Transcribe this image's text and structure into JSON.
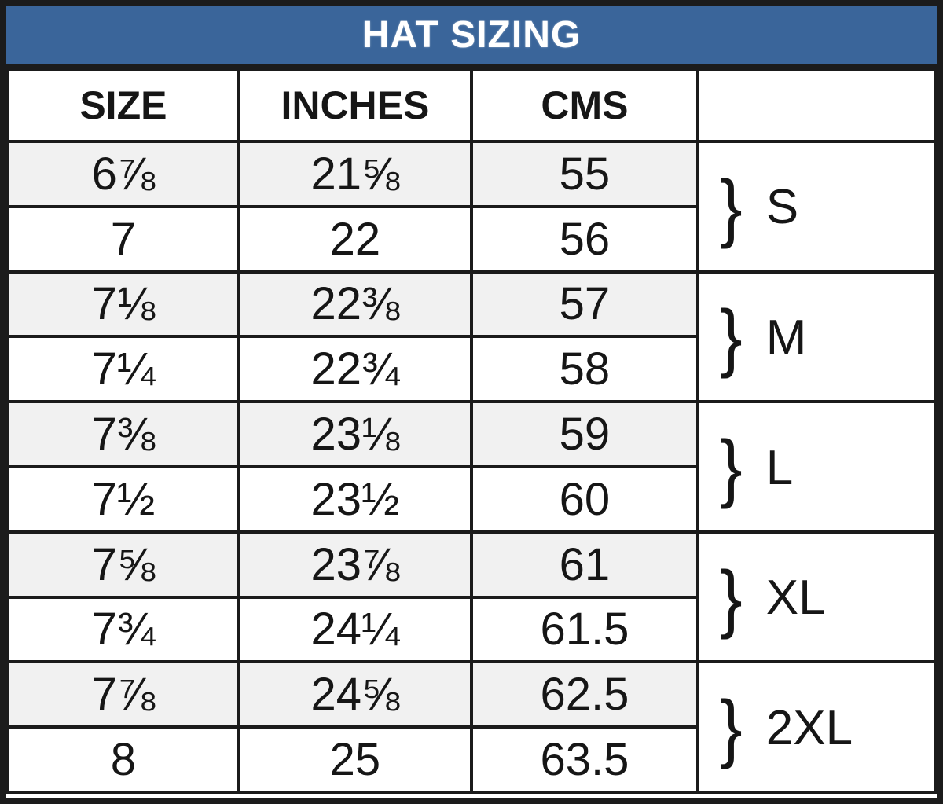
{
  "title": "HAT SIZING",
  "glyphs": {
    "brace": "}"
  },
  "colors": {
    "header_bar_bg": "#3a659a",
    "header_bar_text": "#ffffff",
    "alt_row_bg": "#f1f1f1",
    "row_bg": "#ffffff",
    "border": "#1b1b1b",
    "text": "#161616"
  },
  "chart_data": {
    "type": "table",
    "title": "HAT SIZING",
    "columns": [
      "SIZE",
      "INCHES",
      "CMS",
      ""
    ],
    "rows": [
      [
        "6⅞",
        "21⅝",
        "55"
      ],
      [
        "7",
        "22",
        "56"
      ],
      [
        "7⅛",
        "22⅜",
        "57"
      ],
      [
        "7¼",
        "22¾",
        "58"
      ],
      [
        "7⅜",
        "23⅛",
        "59"
      ],
      [
        "7½",
        "23½",
        "60"
      ],
      [
        "7⅝",
        "23⅞",
        "61"
      ],
      [
        "7¾",
        "24¼",
        "61.5"
      ],
      [
        "7⅞",
        "24⅝",
        "62.5"
      ],
      [
        "8",
        "25",
        "63.5"
      ]
    ],
    "row_groups": [
      {
        "label": "S",
        "rows": [
          0,
          1
        ]
      },
      {
        "label": "M",
        "rows": [
          2,
          3
        ]
      },
      {
        "label": "L",
        "rows": [
          4,
          5
        ]
      },
      {
        "label": "XL",
        "rows": [
          6,
          7
        ]
      },
      {
        "label": "2XL",
        "rows": [
          8,
          9
        ]
      }
    ],
    "layout_hints": {
      "grouped_rowspan": 2,
      "alternating_shading": "odd data rows shaded light gray",
      "title_position": "top banner, blue background"
    }
  }
}
